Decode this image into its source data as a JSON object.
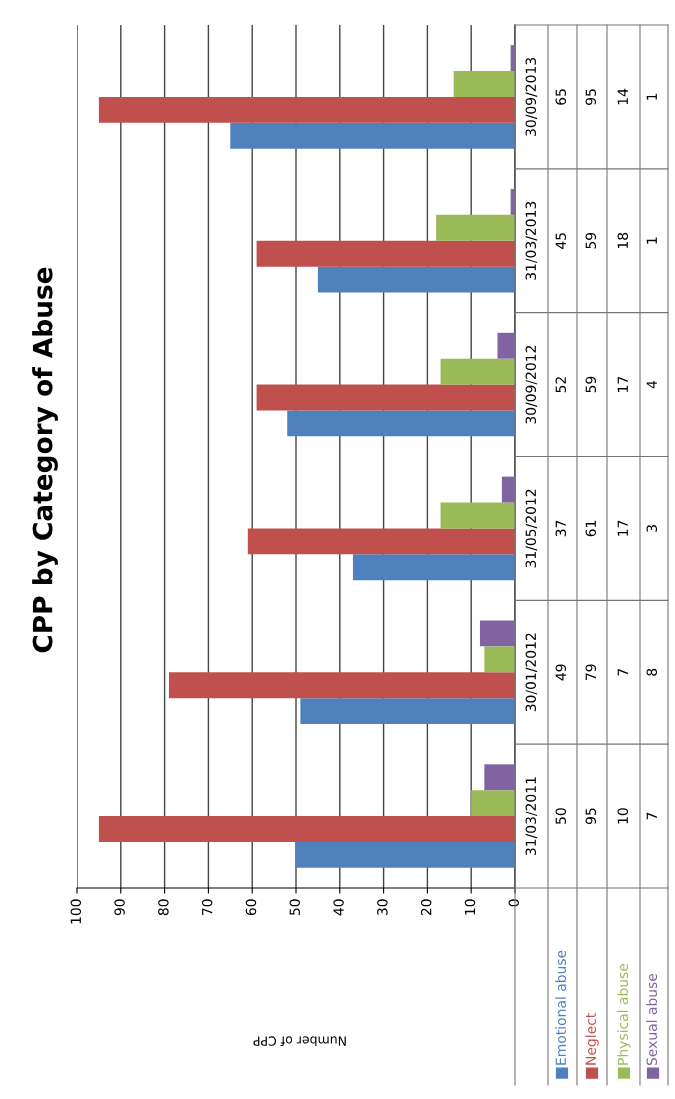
{
  "chart_data": {
    "type": "bar",
    "title": "CPP by Category of Abuse",
    "annotations": [
      "Number of CPP"
    ],
    "orientation": "horizontal",
    "categories": [
      "30/09/2013",
      "31/03/2013",
      "30/09/2012",
      "31/05/2012",
      "30/01/2012",
      "31/03/2011"
    ],
    "series": [
      {
        "name": "Emotional abuse",
        "color": "#4f81bd",
        "values": [
          65,
          45,
          52,
          37,
          49,
          50
        ]
      },
      {
        "name": "Neglect",
        "color": "#c0504d",
        "values": [
          95,
          59,
          59,
          61,
          79,
          95
        ]
      },
      {
        "name": "Physical abuse",
        "color": "#9bbb59",
        "values": [
          14,
          18,
          17,
          17,
          7,
          10
        ]
      },
      {
        "name": "Sexual abuse",
        "color": "#8064a2",
        "values": [
          1,
          1,
          4,
          3,
          8,
          7
        ]
      }
    ],
    "xlim": [
      100,
      0
    ],
    "xticks": [
      0,
      10,
      20,
      30,
      40,
      50,
      60,
      70,
      80,
      90,
      100
    ],
    "grid": "x",
    "data_labels": true
  }
}
